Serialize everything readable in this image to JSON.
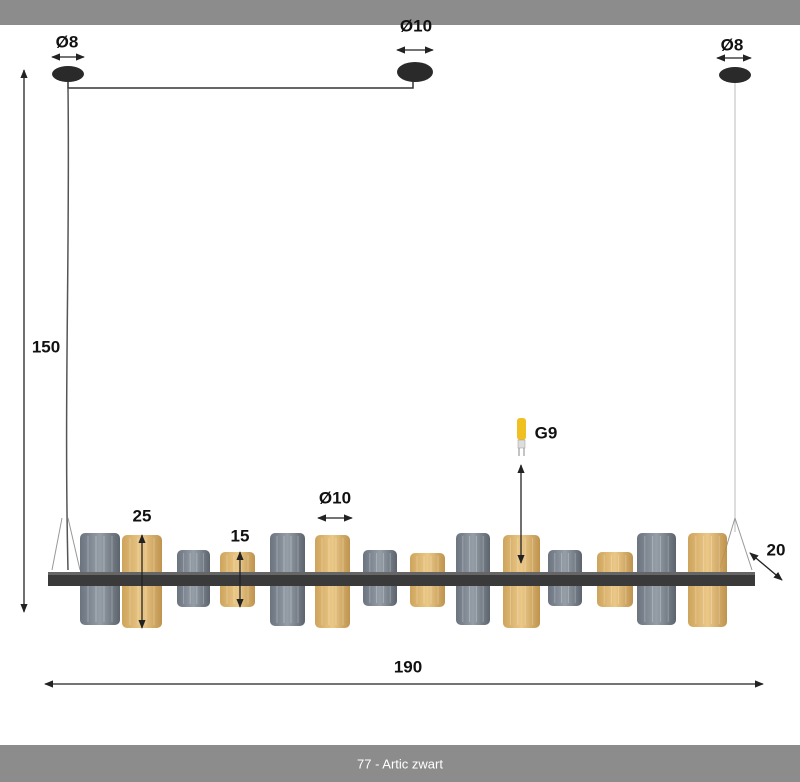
{
  "dimensions": {
    "left_canopy": "Ø8",
    "center_canopy": "Ø10",
    "right_canopy": "Ø8",
    "height": "150",
    "tall_shade": "25",
    "short_shade": "15",
    "shade_diameter": "Ø10",
    "bulb": "G9",
    "depth": "20",
    "width": "190"
  },
  "footer": {
    "caption": "77 - Artic zwart"
  }
}
